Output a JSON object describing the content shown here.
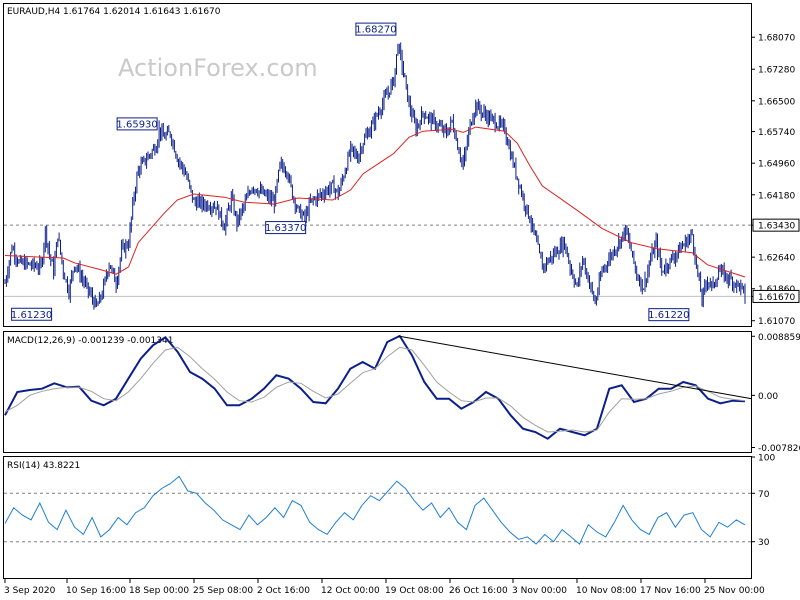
{
  "window": {
    "symbol_header": "EURAUD,H4  1.61764 1.62014 1.61643 1.61670",
    "watermark": "ActionForex.com"
  },
  "colors": {
    "candle": "#0b1f8a",
    "ma": "#dd2222",
    "macd_line": "#0b1f8a",
    "signal_line": "#a0a0a0",
    "rsi": "#1e7fd6",
    "trendline": "#000000",
    "grid_dash": "#808080"
  },
  "chart_data": [
    {
      "type": "candlestick",
      "panel": "price",
      "title": "EURAUD,H4  1.61764 1.62014 1.61643 1.61670",
      "ylim": [
        1.6094,
        1.6889
      ],
      "y_ticks": [
        "1.68070",
        "1.67280",
        "1.66500",
        "1.65740",
        "1.64960",
        "1.64180",
        "1.63430",
        "1.62640",
        "1.61860",
        "1.61670",
        "1.61070"
      ],
      "last_price": "1.61670",
      "level_line": {
        "value": 1.6343,
        "label": "1.63430"
      },
      "annotations": [
        {
          "label": "1.68270",
          "value": 1.6827,
          "date": "2020-10-20 04:00"
        },
        {
          "label": "1.65930",
          "value": 1.6593,
          "date": "2020-09-21 12:00"
        },
        {
          "label": "1.63370",
          "value": 1.6337,
          "date": "2020-10-09 08:00"
        },
        {
          "label": "1.61230",
          "value": 1.6123,
          "date": "2020-09-08 20:00"
        },
        {
          "label": "1.61220",
          "value": 1.6122,
          "date": "2020-11-24 08:00"
        }
      ],
      "x_ticks": [
        "3 Sep 2020",
        "10 Sep 16:00",
        "18 Sep 00:00",
        "25 Sep 08:00",
        "2 Oct 16:00",
        "12 Oct 00:00",
        "19 Oct 08:00",
        "26 Oct 16:00",
        "3 Nov 00:00",
        "10 Nov 08:00",
        "17 Nov 16:00",
        "25 Nov 00:00"
      ],
      "close_path": [
        [
          "2020-09-03 00:00",
          1.62
        ],
        [
          "2020-09-03 20:00",
          1.629
        ],
        [
          "2020-09-04 16:00",
          1.625
        ],
        [
          "2020-09-07 08:00",
          1.624
        ],
        [
          "2020-09-07 20:00",
          1.633
        ],
        [
          "2020-09-08 08:00",
          1.627
        ],
        [
          "2020-09-08 20:00",
          1.623
        ],
        [
          "2020-09-09 08:00",
          1.632
        ],
        [
          "2020-09-10 00:00",
          1.623
        ],
        [
          "2020-09-10 16:00",
          1.618
        ],
        [
          "2020-09-11 08:00",
          1.625
        ],
        [
          "2020-09-14 00:00",
          1.614
        ],
        [
          "2020-09-14 16:00",
          1.6175
        ],
        [
          "2020-09-15 12:00",
          1.625
        ],
        [
          "2020-09-16 08:00",
          1.62
        ],
        [
          "2020-09-17 00:00",
          1.628
        ],
        [
          "2020-09-17 20:00",
          1.63
        ],
        [
          "2020-09-18 12:00",
          1.642
        ],
        [
          "2020-09-19 00:00",
          1.648
        ],
        [
          "2020-09-21 04:00",
          1.654
        ],
        [
          "2020-09-21 12:00",
          1.658
        ],
        [
          "2020-09-22 00:00",
          1.656
        ],
        [
          "2020-09-22 20:00",
          1.657
        ],
        [
          "2020-09-23 16:00",
          1.651
        ],
        [
          "2020-09-24 16:00",
          1.647
        ],
        [
          "2020-09-25 16:00",
          1.64
        ],
        [
          "2020-09-28 08:00",
          1.639
        ],
        [
          "2020-09-29 08:00",
          1.634
        ],
        [
          "2020-09-30 04:00",
          1.641
        ],
        [
          "2020-09-30 20:00",
          1.635
        ],
        [
          "2020-10-01 16:00",
          1.639
        ],
        [
          "2020-10-02 16:00",
          1.644
        ],
        [
          "2020-10-05 08:00",
          1.64
        ],
        [
          "2020-10-06 00:00",
          1.649
        ],
        [
          "2020-10-06 20:00",
          1.648
        ],
        [
          "2020-10-07 12:00",
          1.642
        ],
        [
          "2020-10-08 04:00",
          1.638
        ],
        [
          "2020-10-09 00:00",
          1.636
        ],
        [
          "2020-10-09 16:00",
          1.64
        ],
        [
          "2020-10-12 08:00",
          1.644
        ],
        [
          "2020-10-13 00:00",
          1.642
        ],
        [
          "2020-10-13 20:00",
          1.648
        ],
        [
          "2020-10-14 12:00",
          1.653
        ],
        [
          "2020-10-15 08:00",
          1.651
        ],
        [
          "2020-10-16 00:00",
          1.655
        ],
        [
          "2020-10-16 20:00",
          1.658
        ],
        [
          "2020-10-19 16:00",
          1.67
        ],
        [
          "2020-10-20 04:00",
          1.679
        ],
        [
          "2020-10-20 20:00",
          1.672
        ],
        [
          "2020-10-21 12:00",
          1.664
        ],
        [
          "2020-10-22 08:00",
          1.658
        ],
        [
          "2020-10-23 04:00",
          1.662
        ],
        [
          "2020-10-26 00:00",
          1.657
        ],
        [
          "2020-10-26 16:00",
          1.66
        ],
        [
          "2020-10-27 08:00",
          1.654
        ],
        [
          "2020-10-28 00:00",
          1.649
        ],
        [
          "2020-10-28 20:00",
          1.659
        ],
        [
          "2020-10-29 12:00",
          1.664
        ],
        [
          "2020-10-30 08:00",
          1.662
        ],
        [
          "2020-11-02 00:00",
          1.658
        ],
        [
          "2020-11-02 16:00",
          1.652
        ],
        [
          "2020-11-03 12:00",
          1.646
        ],
        [
          "2020-11-04 08:00",
          1.64
        ],
        [
          "2020-11-05 00:00",
          1.636
        ],
        [
          "2020-11-05 16:00",
          1.631
        ],
        [
          "2020-11-06 12:00",
          1.624
        ],
        [
          "2020-11-09 04:00",
          1.63
        ],
        [
          "2020-11-09 20:00",
          1.624
        ],
        [
          "2020-11-10 16:00",
          1.619
        ],
        [
          "2020-11-11 08:00",
          1.626
        ],
        [
          "2020-11-12 04:00",
          1.62
        ],
        [
          "2020-11-12 20:00",
          1.615
        ],
        [
          "2020-11-13 16:00",
          1.623
        ],
        [
          "2020-11-16 12:00",
          1.633
        ],
        [
          "2020-11-17 04:00",
          1.628
        ],
        [
          "2020-11-17 20:00",
          1.622
        ],
        [
          "2020-11-18 16:00",
          1.619
        ],
        [
          "2020-11-19 12:00",
          1.626
        ],
        [
          "2020-11-20 04:00",
          1.63
        ],
        [
          "2020-11-20 20:00",
          1.623
        ],
        [
          "2020-11-23 16:00",
          1.63
        ],
        [
          "2020-11-24 12:00",
          1.632
        ],
        [
          "2020-11-25 00:00",
          1.624
        ],
        [
          "2020-11-25 16:00",
          1.616
        ],
        [
          "2020-11-26 08:00",
          1.621
        ],
        [
          "2020-11-27 00:00",
          1.619
        ],
        [
          "2020-11-27 16:00",
          1.623
        ],
        [
          "2020-11-30 08:00",
          1.619
        ],
        [
          "2020-11-30 20:00",
          1.6167
        ]
      ],
      "ma_path": [
        [
          "2020-09-03 00:00",
          1.6268
        ],
        [
          "2020-09-07 08:00",
          1.6264
        ],
        [
          "2020-09-10 00:00",
          1.6262
        ],
        [
          "2020-09-11 08:00",
          1.625
        ],
        [
          "2020-09-14 16:00",
          1.6232
        ],
        [
          "2020-09-16 08:00",
          1.6222
        ],
        [
          "2020-09-17 20:00",
          1.624
        ],
        [
          "2020-09-19 00:00",
          1.63
        ],
        [
          "2020-09-22 00:00",
          1.637
        ],
        [
          "2020-09-23 16:00",
          1.6405
        ],
        [
          "2020-09-25 16:00",
          1.642
        ],
        [
          "2020-09-29 08:00",
          1.6412
        ],
        [
          "2020-10-01 16:00",
          1.64
        ],
        [
          "2020-10-05 08:00",
          1.6395
        ],
        [
          "2020-10-08 04:00",
          1.641
        ],
        [
          "2020-10-12 08:00",
          1.6405
        ],
        [
          "2020-10-14 12:00",
          1.643
        ],
        [
          "2020-10-16 00:00",
          1.647
        ],
        [
          "2020-10-19 16:00",
          1.652
        ],
        [
          "2020-10-21 12:00",
          1.656
        ],
        [
          "2020-10-23 04:00",
          1.6575
        ],
        [
          "2020-10-26 16:00",
          1.658
        ],
        [
          "2020-10-28 00:00",
          1.6572
        ],
        [
          "2020-10-29 12:00",
          1.6585
        ],
        [
          "2020-11-02 00:00",
          1.6575
        ],
        [
          "2020-11-03 12:00",
          1.6545
        ],
        [
          "2020-11-05 00:00",
          1.649
        ],
        [
          "2020-11-06 12:00",
          1.644
        ],
        [
          "2020-11-10 16:00",
          1.638
        ],
        [
          "2020-11-13 16:00",
          1.6335
        ],
        [
          "2020-11-17 04:00",
          1.63
        ],
        [
          "2020-11-20 04:00",
          1.6285
        ],
        [
          "2020-11-24 12:00",
          1.6275
        ],
        [
          "2020-11-26 08:00",
          1.6245
        ],
        [
          "2020-11-30 20:00",
          1.6215
        ]
      ]
    },
    {
      "type": "line",
      "panel": "macd",
      "title": "MACD(12,26,9) -0.001239 -0.001341",
      "ylim": [
        -0.0085,
        0.0095
      ],
      "y_ticks": [
        "0.008859",
        "0.00",
        "-0.007826"
      ],
      "series": [
        {
          "name": "MACD",
          "values": [
            -0.003,
            0.0005,
            0.0008,
            0.001,
            0.0018,
            0.0012,
            0.0013,
            -0.0008,
            -0.0015,
            -0.0005,
            0.0025,
            0.0055,
            0.0075,
            0.0087,
            0.0065,
            0.0035,
            0.0025,
            0.001,
            -0.0015,
            -0.0015,
            -0.0005,
            0.001,
            0.003,
            0.0025,
            0.001,
            -0.001,
            -0.0012,
            0.001,
            0.004,
            0.005,
            0.004,
            0.008,
            0.0089,
            0.006,
            0.002,
            -0.0005,
            -0.0005,
            -0.002,
            -0.001,
            0.0005,
            -0.0005,
            -0.003,
            -0.005,
            -0.0055,
            -0.0065,
            -0.005,
            -0.0055,
            -0.006,
            -0.005,
            0.001,
            0.0015,
            -0.001,
            -0.0005,
            0.001,
            0.001,
            0.002,
            0.0015,
            -0.0005,
            -0.0012,
            -0.0008,
            -0.0009
          ]
        },
        {
          "name": "Signal",
          "values": [
            -0.0025,
            -0.0015,
            0.0,
            0.0006,
            0.001,
            0.0012,
            0.0012,
            0.0006,
            -0.0005,
            -0.0008,
            0.0005,
            0.0025,
            0.0048,
            0.0068,
            0.0072,
            0.0058,
            0.004,
            0.0024,
            0.0005,
            -0.0008,
            -0.001,
            -0.0003,
            0.0012,
            0.002,
            0.0018,
            0.0006,
            -0.0004,
            0.0002,
            0.0018,
            0.0034,
            0.004,
            0.0058,
            0.0072,
            0.0068,
            0.0045,
            0.002,
            0.0005,
            -0.0008,
            -0.001,
            -0.0004,
            -0.0004,
            -0.0016,
            -0.0033,
            -0.0045,
            -0.0055,
            -0.0054,
            -0.0052,
            -0.0055,
            -0.0052,
            -0.0025,
            -0.0005,
            -0.0006,
            -0.0005,
            0.0002,
            0.0006,
            0.0012,
            0.0014,
            0.0006,
            -0.0003,
            -0.0006,
            -0.0008
          ]
        }
      ],
      "trendline": [
        [
          "2020-10-20 04:00",
          0.0089
        ],
        [
          "2020-11-30 20:00",
          -0.0005
        ]
      ]
    },
    {
      "type": "line",
      "panel": "rsi",
      "title": "RSI(14) 43.8221",
      "ylim": [
        0,
        100
      ],
      "y_ticks": [
        "100",
        "70",
        "30"
      ],
      "levels": [
        70,
        30
      ],
      "series": [
        {
          "name": "RSI(14)",
          "values": [
            45,
            58,
            52,
            48,
            62,
            46,
            40,
            56,
            42,
            36,
            50,
            34,
            40,
            50,
            44,
            54,
            58,
            68,
            74,
            78,
            84,
            72,
            70,
            62,
            56,
            48,
            44,
            40,
            52,
            44,
            50,
            58,
            50,
            64,
            60,
            46,
            40,
            36,
            46,
            54,
            48,
            60,
            68,
            64,
            72,
            80,
            74,
            64,
            56,
            62,
            50,
            58,
            46,
            40,
            60,
            66,
            56,
            46,
            38,
            32,
            34,
            28,
            36,
            30,
            40,
            34,
            28,
            44,
            38,
            34,
            46,
            60,
            48,
            40,
            36,
            50,
            54,
            42,
            52,
            54,
            40,
            34,
            46,
            42,
            48,
            44
          ]
        }
      ]
    }
  ]
}
